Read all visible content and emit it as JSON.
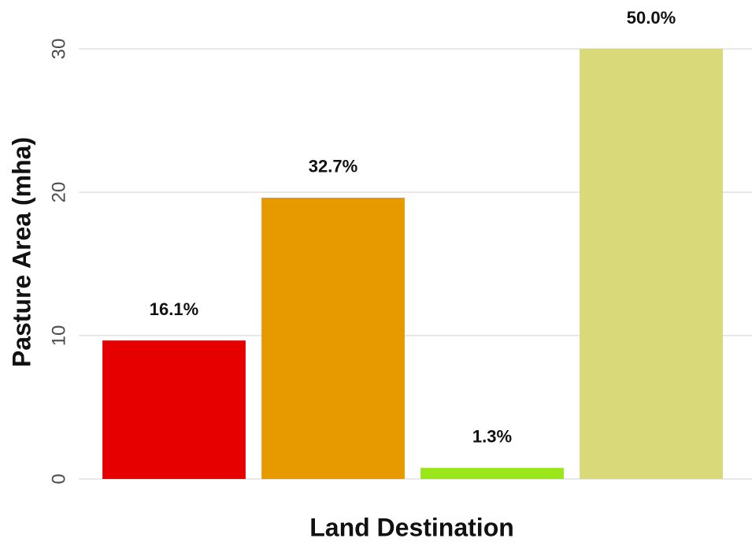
{
  "chart_data": {
    "type": "bar",
    "x_label": "Land Destination",
    "y_label": "Pasture Area (mha)",
    "categories": [
      null,
      null,
      null,
      null
    ],
    "values": [
      9.66,
      19.62,
      0.78,
      30.0
    ],
    "share_labels": [
      "16.1%",
      "32.7%",
      "1.3%",
      "50.0%"
    ],
    "colors": [
      "#e60000",
      "#e69a00",
      "#9ae61a",
      "#d9d97a"
    ],
    "ylim": [
      0,
      30
    ],
    "yticks": [
      0,
      10,
      20,
      30
    ],
    "grid": true
  }
}
